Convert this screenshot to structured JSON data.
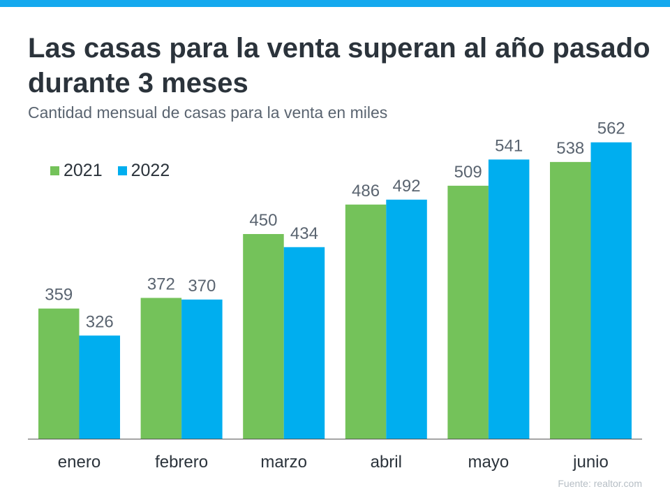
{
  "title": "Las casas para la venta superan al año pasado durante 3 meses",
  "subtitle": "Cantidad mensual de casas para la venta en miles",
  "source": "Fuente:  realtor.com",
  "colors": {
    "accent_bar": "#14a9ee",
    "series_2021": "#74c25a",
    "series_2022": "#00aeef",
    "label": "#5a6470"
  },
  "chart_data": {
    "type": "bar",
    "categories": [
      "enero",
      "febrero",
      "marzo",
      "abril",
      "mayo",
      "junio"
    ],
    "series": [
      {
        "name": "2021",
        "values": [
          359,
          372,
          450,
          486,
          509,
          538
        ]
      },
      {
        "name": "2022",
        "values": [
          326,
          370,
          434,
          492,
          541,
          562
        ]
      }
    ],
    "ylim": [
      200,
      600
    ],
    "grid": false,
    "legend": "top-left",
    "data_labels": true
  }
}
